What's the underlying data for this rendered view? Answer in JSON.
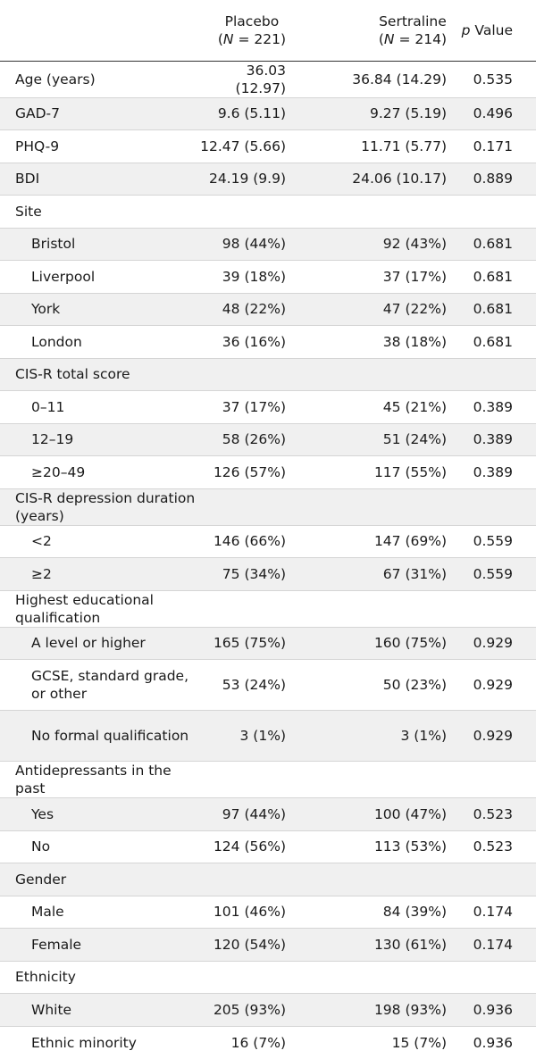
{
  "header": {
    "placebo_label": "Placebo",
    "placebo_n_var": "N",
    "placebo_n_rest": " = 221)",
    "sert_label": "Sertraline",
    "sert_n_var": "N",
    "sert_n_rest": " = 214)",
    "p_var": "p",
    "p_rest": " Value",
    "paren_open": "("
  },
  "rows": [
    {
      "label": "Age (years)",
      "placebo": "36.03 (12.97)",
      "sertraline": "36.84 (14.29)",
      "p": "0.535",
      "sub": false
    },
    {
      "label": "GAD-7",
      "placebo": "9.6 (5.11)",
      "sertraline": "9.27 (5.19)",
      "p": "0.496",
      "sub": false
    },
    {
      "label": "PHQ-9",
      "placebo": "12.47 (5.66)",
      "sertraline": "11.71 (5.77)",
      "p": "0.171",
      "sub": false
    },
    {
      "label": "BDI",
      "placebo": "24.19 (9.9)",
      "sertraline": "24.06 (10.17)",
      "p": "0.889",
      "sub": false
    },
    {
      "label": "Site",
      "placebo": "",
      "sertraline": "",
      "p": "",
      "sub": false
    },
    {
      "label": "Bristol",
      "placebo": "98 (44%)",
      "sertraline": "92 (43%)",
      "p": "0.681",
      "sub": true
    },
    {
      "label": "Liverpool",
      "placebo": "39 (18%)",
      "sertraline": "37 (17%)",
      "p": "0.681",
      "sub": true
    },
    {
      "label": "York",
      "placebo": "48 (22%)",
      "sertraline": "47 (22%)",
      "p": "0.681",
      "sub": true
    },
    {
      "label": "London",
      "placebo": "36 (16%)",
      "sertraline": "38 (18%)",
      "p": "0.681",
      "sub": true
    },
    {
      "label": "CIS-R total score",
      "placebo": "",
      "sertraline": "",
      "p": "",
      "sub": false
    },
    {
      "label": "0–11",
      "placebo": "37 (17%)",
      "sertraline": "45 (21%)",
      "p": "0.389",
      "sub": true
    },
    {
      "label": "12–19",
      "placebo": "58 (26%)",
      "sertraline": "51 (24%)",
      "p": "0.389",
      "sub": true
    },
    {
      "label": "≥20–49",
      "placebo": "126 (57%)",
      "sertraline": "117 (55%)",
      "p": "0.389",
      "sub": true
    },
    {
      "label": "CIS-R depression duration (years)",
      "placebo": "",
      "sertraline": "",
      "p": "",
      "sub": false
    },
    {
      "label": "<2",
      "placebo": "146 (66%)",
      "sertraline": "147 (69%)",
      "p": "0.559",
      "sub": true
    },
    {
      "label": "≥2",
      "placebo": "75 (34%)",
      "sertraline": "67 (31%)",
      "p": "0.559",
      "sub": true
    },
    {
      "label": "Highest educational qualification",
      "placebo": "",
      "sertraline": "",
      "p": "",
      "sub": false
    },
    {
      "label": "A level or higher",
      "placebo": "165 (75%)",
      "sertraline": "160 (75%)",
      "p": "0.929",
      "sub": true
    },
    {
      "label": "GCSE, standard grade, or other",
      "placebo": "53 (24%)",
      "sertraline": "50 (23%)",
      "p": "0.929",
      "sub": true,
      "tall": true
    },
    {
      "label": "No formal qualification",
      "placebo": "3 (1%)",
      "sertraline": "3 (1%)",
      "p": "0.929",
      "sub": true,
      "tall": true
    },
    {
      "label": "Antidepressants in the past",
      "placebo": "",
      "sertraline": "",
      "p": "",
      "sub": false
    },
    {
      "label": "Yes",
      "placebo": "97 (44%)",
      "sertraline": "100 (47%)",
      "p": "0.523",
      "sub": true
    },
    {
      "label": "No",
      "placebo": "124 (56%)",
      "sertraline": "113 (53%)",
      "p": "0.523",
      "sub": true
    },
    {
      "label": "Gender",
      "placebo": "",
      "sertraline": "",
      "p": "",
      "sub": false
    },
    {
      "label": "Male",
      "placebo": "101 (46%)",
      "sertraline": "84 (39%)",
      "p": "0.174",
      "sub": true
    },
    {
      "label": "Female",
      "placebo": "120 (54%)",
      "sertraline": "130 (61%)",
      "p": "0.174",
      "sub": true
    },
    {
      "label": "Ethnicity",
      "placebo": "",
      "sertraline": "",
      "p": "",
      "sub": false
    },
    {
      "label": "White",
      "placebo": "205 (93%)",
      "sertraline": "198 (93%)",
      "p": "0.936",
      "sub": true
    },
    {
      "label": "Ethnic minority",
      "placebo": "16 (7%)",
      "sertraline": "15 (7%)",
      "p": "0.936",
      "sub": true
    }
  ]
}
